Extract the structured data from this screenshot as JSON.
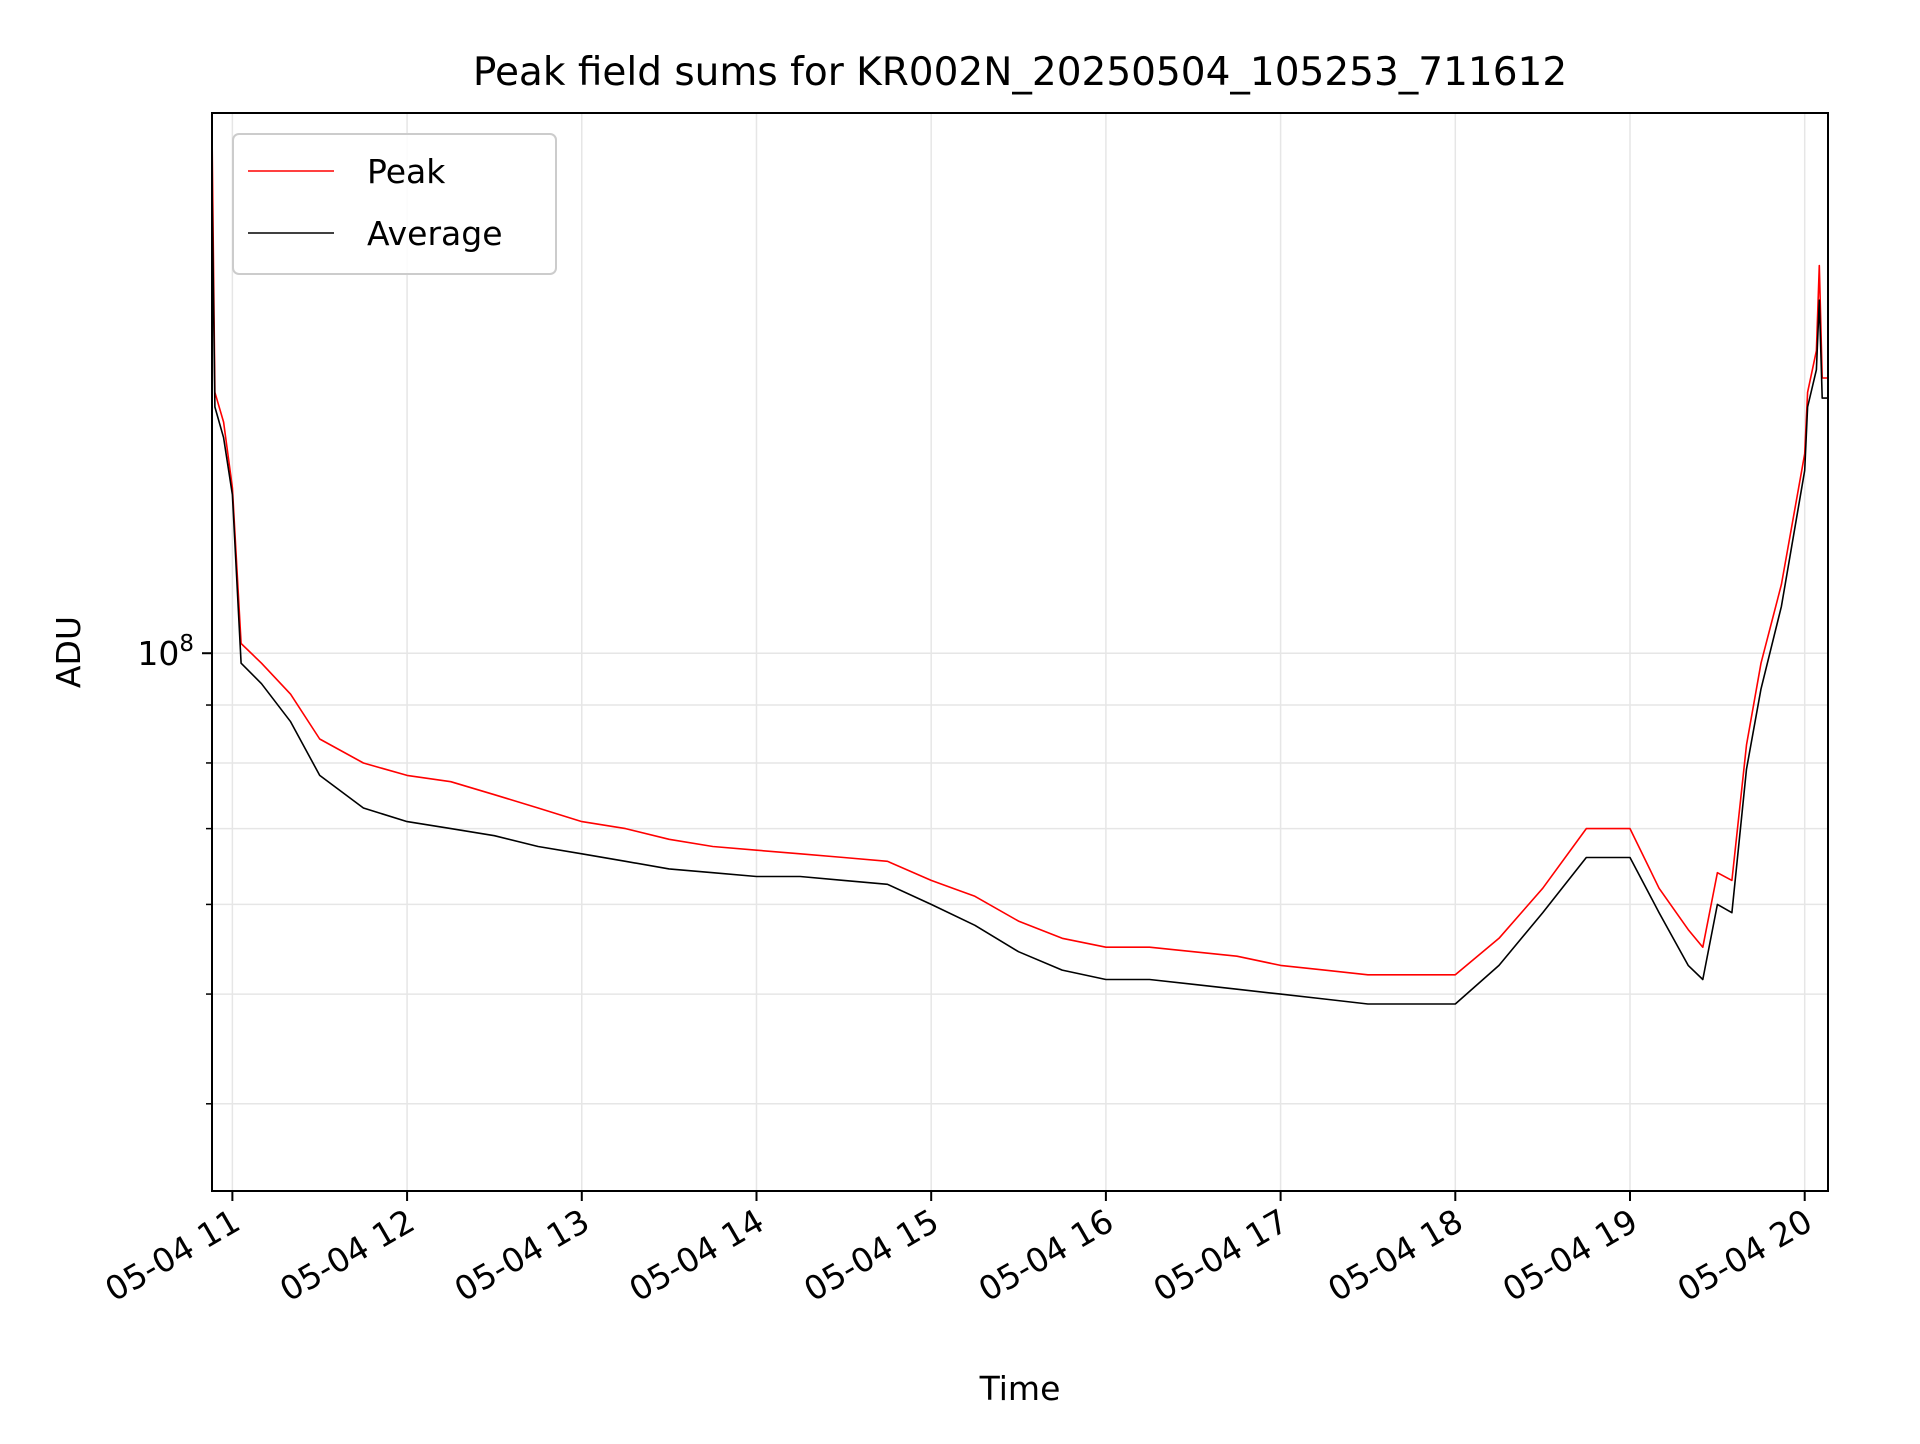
{
  "chart_data": {
    "type": "line",
    "title": "Peak field sums for KR002N_20250504_105253_711612",
    "xlabel": "Time",
    "ylabel": "ADU",
    "yscale": "log",
    "ylim": [
      33500000,
      300000000
    ],
    "xlim": [
      "2025-05-04 10:53",
      "2025-05-04 20:08"
    ],
    "x_ticks": [
      {
        "value": "2025-05-04 11:00",
        "label": "05-04 11"
      },
      {
        "value": "2025-05-04 12:00",
        "label": "05-04 12"
      },
      {
        "value": "2025-05-04 13:00",
        "label": "05-04 13"
      },
      {
        "value": "2025-05-04 14:00",
        "label": "05-04 14"
      },
      {
        "value": "2025-05-04 15:00",
        "label": "05-04 15"
      },
      {
        "value": "2025-05-04 16:00",
        "label": "05-04 16"
      },
      {
        "value": "2025-05-04 17:00",
        "label": "05-04 17"
      },
      {
        "value": "2025-05-04 18:00",
        "label": "05-04 18"
      },
      {
        "value": "2025-05-04 19:00",
        "label": "05-04 19"
      },
      {
        "value": "2025-05-04 20:00",
        "label": "05-04 20"
      }
    ],
    "y_ticks_major": [
      {
        "value": 100000000,
        "label_base": "10",
        "label_exp": "8"
      }
    ],
    "y_ticks_minor": [
      40000000,
      50000000,
      60000000,
      70000000,
      80000000,
      90000000
    ],
    "grid": true,
    "legend_position": "top-left",
    "series": [
      {
        "name": "Peak",
        "color": "#ff0000",
        "points": [
          [
            "2025-05-04 10:53",
            290000000
          ],
          [
            "2025-05-04 10:54",
            170000000
          ],
          [
            "2025-05-04 10:57",
            160000000
          ],
          [
            "2025-05-04 11:00",
            140000000
          ],
          [
            "2025-05-04 11:03",
            102000000
          ],
          [
            "2025-05-04 11:10",
            98000000
          ],
          [
            "2025-05-04 11:20",
            92000000
          ],
          [
            "2025-05-04 11:30",
            84000000
          ],
          [
            "2025-05-04 11:45",
            80000000
          ],
          [
            "2025-05-04 12:00",
            78000000
          ],
          [
            "2025-05-04 12:15",
            77000000
          ],
          [
            "2025-05-04 12:30",
            75000000
          ],
          [
            "2025-05-04 12:45",
            73000000
          ],
          [
            "2025-05-04 13:00",
            71000000
          ],
          [
            "2025-05-04 13:15",
            70000000
          ],
          [
            "2025-05-04 13:30",
            68500000
          ],
          [
            "2025-05-04 13:45",
            67500000
          ],
          [
            "2025-05-04 14:00",
            67000000
          ],
          [
            "2025-05-04 14:15",
            66500000
          ],
          [
            "2025-05-04 14:30",
            66000000
          ],
          [
            "2025-05-04 14:45",
            65500000
          ],
          [
            "2025-05-04 15:00",
            63000000
          ],
          [
            "2025-05-04 15:15",
            61000000
          ],
          [
            "2025-05-04 15:30",
            58000000
          ],
          [
            "2025-05-04 15:45",
            56000000
          ],
          [
            "2025-05-04 16:00",
            55000000
          ],
          [
            "2025-05-04 16:15",
            55000000
          ],
          [
            "2025-05-04 16:30",
            54500000
          ],
          [
            "2025-05-04 16:45",
            54000000
          ],
          [
            "2025-05-04 17:00",
            53000000
          ],
          [
            "2025-05-04 17:15",
            52500000
          ],
          [
            "2025-05-04 17:30",
            52000000
          ],
          [
            "2025-05-04 17:45",
            52000000
          ],
          [
            "2025-05-04 18:00",
            52000000
          ],
          [
            "2025-05-04 18:15",
            56000000
          ],
          [
            "2025-05-04 18:30",
            62000000
          ],
          [
            "2025-05-04 18:45",
            70000000
          ],
          [
            "2025-05-04 19:00",
            70000000
          ],
          [
            "2025-05-04 19:10",
            62000000
          ],
          [
            "2025-05-04 19:20",
            57000000
          ],
          [
            "2025-05-04 19:25",
            55000000
          ],
          [
            "2025-05-04 19:30",
            64000000
          ],
          [
            "2025-05-04 19:35",
            63000000
          ],
          [
            "2025-05-04 19:40",
            83000000
          ],
          [
            "2025-05-04 19:45",
            98000000
          ],
          [
            "2025-05-04 19:52",
            115000000
          ],
          [
            "2025-05-04 20:00",
            150000000
          ],
          [
            "2025-05-04 20:01",
            170000000
          ],
          [
            "2025-05-04 20:04",
            185000000
          ],
          [
            "2025-05-04 20:05",
            220000000
          ],
          [
            "2025-05-04 20:06",
            175000000
          ],
          [
            "2025-05-04 20:08",
            175000000
          ]
        ]
      },
      {
        "name": "Average",
        "color": "#000000",
        "points": [
          [
            "2025-05-04 10:53",
            260000000
          ],
          [
            "2025-05-04 10:54",
            165000000
          ],
          [
            "2025-05-04 10:57",
            155000000
          ],
          [
            "2025-05-04 11:00",
            138000000
          ],
          [
            "2025-05-04 11:03",
            98000000
          ],
          [
            "2025-05-04 11:10",
            94000000
          ],
          [
            "2025-05-04 11:20",
            87000000
          ],
          [
            "2025-05-04 11:30",
            78000000
          ],
          [
            "2025-05-04 11:45",
            73000000
          ],
          [
            "2025-05-04 12:00",
            71000000
          ],
          [
            "2025-05-04 12:15",
            70000000
          ],
          [
            "2025-05-04 12:30",
            69000000
          ],
          [
            "2025-05-04 12:45",
            67500000
          ],
          [
            "2025-05-04 13:00",
            66500000
          ],
          [
            "2025-05-04 13:15",
            65500000
          ],
          [
            "2025-05-04 13:30",
            64500000
          ],
          [
            "2025-05-04 13:45",
            64000000
          ],
          [
            "2025-05-04 14:00",
            63500000
          ],
          [
            "2025-05-04 14:15",
            63500000
          ],
          [
            "2025-05-04 14:30",
            63000000
          ],
          [
            "2025-05-04 14:45",
            62500000
          ],
          [
            "2025-05-04 15:00",
            60000000
          ],
          [
            "2025-05-04 15:15",
            57500000
          ],
          [
            "2025-05-04 15:30",
            54500000
          ],
          [
            "2025-05-04 15:45",
            52500000
          ],
          [
            "2025-05-04 16:00",
            51500000
          ],
          [
            "2025-05-04 16:15",
            51500000
          ],
          [
            "2025-05-04 16:30",
            51000000
          ],
          [
            "2025-05-04 16:45",
            50500000
          ],
          [
            "2025-05-04 17:00",
            50000000
          ],
          [
            "2025-05-04 17:15",
            49500000
          ],
          [
            "2025-05-04 17:30",
            49000000
          ],
          [
            "2025-05-04 17:45",
            49000000
          ],
          [
            "2025-05-04 18:00",
            49000000
          ],
          [
            "2025-05-04 18:15",
            53000000
          ],
          [
            "2025-05-04 18:30",
            59000000
          ],
          [
            "2025-05-04 18:45",
            66000000
          ],
          [
            "2025-05-04 19:00",
            66000000
          ],
          [
            "2025-05-04 19:10",
            59000000
          ],
          [
            "2025-05-04 19:20",
            53000000
          ],
          [
            "2025-05-04 19:25",
            51500000
          ],
          [
            "2025-05-04 19:30",
            60000000
          ],
          [
            "2025-05-04 19:35",
            59000000
          ],
          [
            "2025-05-04 19:40",
            79000000
          ],
          [
            "2025-05-04 19:45",
            93000000
          ],
          [
            "2025-05-04 19:52",
            110000000
          ],
          [
            "2025-05-04 20:00",
            145000000
          ],
          [
            "2025-05-04 20:01",
            165000000
          ],
          [
            "2025-05-04 20:04",
            178000000
          ],
          [
            "2025-05-04 20:05",
            205000000
          ],
          [
            "2025-05-04 20:06",
            168000000
          ],
          [
            "2025-05-04 20:08",
            168000000
          ]
        ]
      }
    ]
  }
}
